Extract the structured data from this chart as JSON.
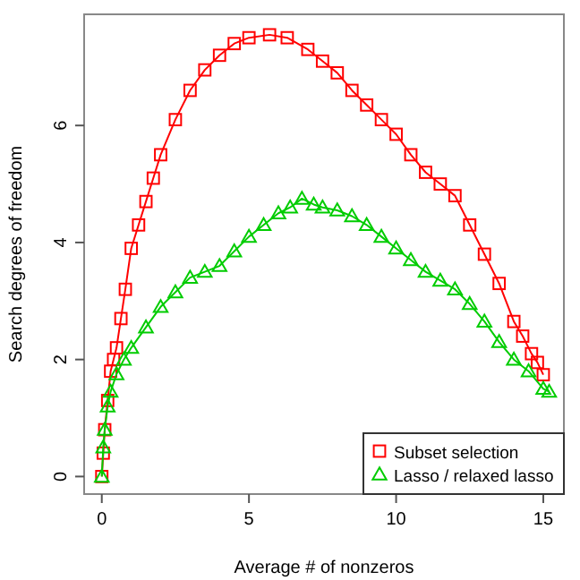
{
  "chart_data": {
    "type": "line",
    "xlabel": "Average # of nonzeros",
    "ylabel": "Search degrees of freedom",
    "xlim": [
      -0.6,
      15.7
    ],
    "ylim": [
      -0.3,
      7.9
    ],
    "xticks": [
      0,
      5,
      10,
      15
    ],
    "yticks": [
      0,
      2,
      4,
      6
    ],
    "grid": false,
    "legend": "bottom right",
    "series": [
      {
        "name": "Subset selection",
        "color": "#ff0000",
        "marker": "square",
        "x": [
          0,
          0.05,
          0.1,
          0.2,
          0.3,
          0.4,
          0.5,
          0.65,
          0.8,
          1,
          1.25,
          1.5,
          1.75,
          2,
          2.5,
          3,
          3.5,
          4,
          4.5,
          5,
          5.7,
          6.3,
          7,
          7.5,
          8,
          8.5,
          9,
          9.5,
          10,
          10.5,
          11,
          11.5,
          12,
          12.5,
          13,
          13.5,
          14,
          14.3,
          14.6,
          14.8,
          15
        ],
        "values": [
          0,
          0.4,
          0.8,
          1.3,
          1.8,
          2.0,
          2.2,
          2.7,
          3.2,
          3.9,
          4.3,
          4.7,
          5.1,
          5.5,
          6.1,
          6.6,
          6.95,
          7.2,
          7.4,
          7.5,
          7.55,
          7.5,
          7.3,
          7.1,
          6.9,
          6.6,
          6.35,
          6.1,
          5.85,
          5.5,
          5.2,
          5.0,
          4.8,
          4.3,
          3.8,
          3.3,
          2.65,
          2.4,
          2.1,
          1.95,
          1.74
        ]
      },
      {
        "name": "Lasso / relaxed lasso",
        "color": "#00cc00",
        "marker": "triangle",
        "x": [
          0,
          0.05,
          0.1,
          0.2,
          0.3,
          0.5,
          0.75,
          1,
          1.5,
          2,
          2.5,
          3,
          3.5,
          4,
          4.5,
          5,
          5.5,
          6,
          6.4,
          6.8,
          7.2,
          7.5,
          8,
          8.5,
          9,
          9.5,
          10,
          10.5,
          11,
          11.5,
          12,
          12.5,
          13,
          13.5,
          14,
          14.5,
          15,
          15.2
        ],
        "values": [
          0,
          0.5,
          0.8,
          1.2,
          1.45,
          1.75,
          2.0,
          2.2,
          2.55,
          2.9,
          3.15,
          3.4,
          3.5,
          3.6,
          3.85,
          4.1,
          4.3,
          4.5,
          4.6,
          4.75,
          4.65,
          4.6,
          4.55,
          4.45,
          4.3,
          4.1,
          3.9,
          3.7,
          3.5,
          3.35,
          3.2,
          2.95,
          2.65,
          2.3,
          2.0,
          1.8,
          1.5,
          1.45
        ]
      }
    ]
  }
}
